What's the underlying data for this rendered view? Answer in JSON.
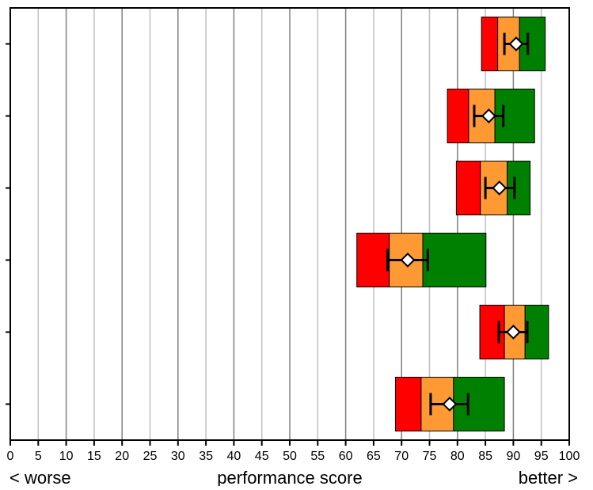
{
  "chart_data": {
    "type": "bar",
    "orientation": "horizontal",
    "title": "",
    "xlabel": "performance score",
    "xlabel_left": "< worse",
    "xlabel_right": "better >",
    "ylabel": "",
    "xlim": [
      0,
      100
    ],
    "x_ticks": [
      0,
      5,
      10,
      15,
      20,
      25,
      30,
      35,
      40,
      45,
      50,
      55,
      60,
      65,
      70,
      75,
      80,
      85,
      90,
      95,
      100
    ],
    "grid": "vertical",
    "segment_colors": {
      "red": "#ff0000",
      "orange": "#ff9933",
      "green": "#008000"
    },
    "grid_colors": {
      "major": "#808080",
      "minor": "#c0c0c0"
    },
    "rows": [
      {
        "red": [
          84.3,
          87.2
        ],
        "orange": [
          87.2,
          91.1
        ],
        "green": [
          91.1,
          95.7
        ],
        "mean": 90.5,
        "err": [
          88.4,
          92.6
        ]
      },
      {
        "red": [
          78.2,
          82.0
        ],
        "orange": [
          82.0,
          86.7
        ],
        "green": [
          86.7,
          93.8
        ],
        "mean": 85.6,
        "err": [
          83.0,
          88.2
        ]
      },
      {
        "red": [
          79.8,
          84.1
        ],
        "orange": [
          84.1,
          88.9
        ],
        "green": [
          88.9,
          93.0
        ],
        "mean": 87.5,
        "err": [
          85.0,
          90.2
        ]
      },
      {
        "red": [
          62.0,
          67.8
        ],
        "orange": [
          67.8,
          73.8
        ],
        "green": [
          73.8,
          85.1
        ],
        "mean": 71.1,
        "err": [
          67.5,
          74.7
        ]
      },
      {
        "red": [
          84.0,
          88.4
        ],
        "orange": [
          88.4,
          92.1
        ],
        "green": [
          92.1,
          96.3
        ],
        "mean": 90.0,
        "err": [
          87.4,
          92.5
        ]
      },
      {
        "red": [
          68.9,
          73.5
        ],
        "orange": [
          73.5,
          79.3
        ],
        "green": [
          79.3,
          88.4
        ],
        "mean": 78.6,
        "err": [
          75.2,
          81.9
        ]
      }
    ]
  }
}
